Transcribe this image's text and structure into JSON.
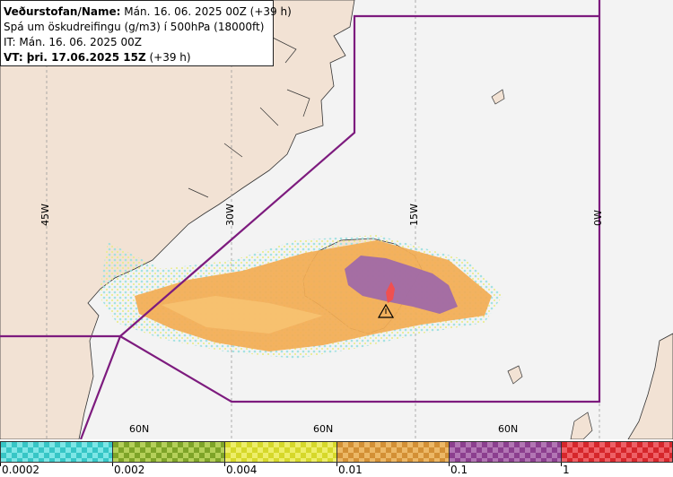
{
  "header": {
    "line1_label": "Veðurstofan/Name:",
    "line1_value": "Mán. 16. 06. 2025 00Z (+39 h)",
    "line2": "Spá um öskudreifingu (g/m3) í 500hPa (18000ft)",
    "line3": "IT: Mán. 16. 06. 2025 00Z",
    "line4_label": "VT: þri. 17.06.2025 15Z",
    "line4_value": "(+39 h)"
  },
  "longitudes": [
    "45W",
    "30W",
    "15W",
    "0W"
  ],
  "latitudes": [
    "60N",
    "60N",
    "60N"
  ],
  "legend": {
    "labels": [
      "0.0002",
      "0.002",
      "0.004",
      "0.01",
      "0.1",
      "1"
    ],
    "colors": [
      "#37c6c6",
      "#7ea428",
      "#d6d82a",
      "#d39035",
      "#8c3f8f",
      "#d6262b"
    ],
    "checker": [
      "#7ee6e6",
      "#b5d05a",
      "#eeee6a",
      "#ecb867",
      "#b276b4",
      "#ee6066"
    ]
  },
  "colors": {
    "land": "#f2e2d4",
    "sea": "#f3f3f3",
    "boundary": "#7d1b7e",
    "ash_low": "#f3ac54",
    "ash_mid": "#f7c271",
    "ash_high": "#a06aa6",
    "ash_peak": "#f05050"
  },
  "icons": [
    "volcano-icon"
  ]
}
